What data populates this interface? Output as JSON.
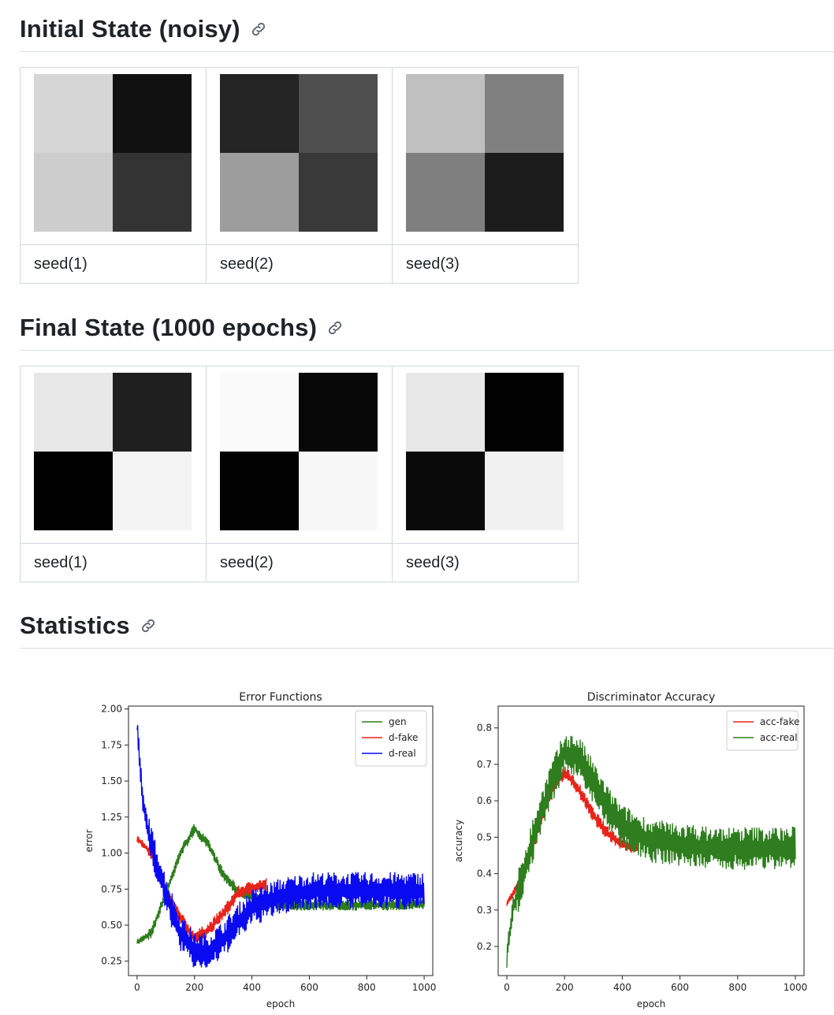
{
  "sections": [
    {
      "title": "Initial State (noisy)",
      "icon": "link-icon"
    },
    {
      "title": "Final State (1000 epochs)",
      "icon": "link-icon"
    },
    {
      "title": "Statistics",
      "icon": "link-icon"
    }
  ],
  "initial": {
    "captions": [
      "seed(1)",
      "seed(2)",
      "seed(3)"
    ],
    "grids": [
      [
        "#d6d6d6",
        "#111111",
        "#cdcdcd",
        "#333333"
      ],
      [
        "#242424",
        "#4e4e4e",
        "#9d9d9d",
        "#393939"
      ],
      [
        "#c0c0c0",
        "#808080",
        "#7f7f7f",
        "#1c1c1c"
      ]
    ]
  },
  "final": {
    "captions": [
      "seed(1)",
      "seed(2)",
      "seed(3)"
    ],
    "grids": [
      [
        "#e7e7e7",
        "#1f1f1f",
        "#000000",
        "#f4f4f4"
      ],
      [
        "#fafafa",
        "#080808",
        "#020202",
        "#f7f7f7"
      ],
      [
        "#e7e7e7",
        "#020202",
        "#0a0a0a",
        "#f1f1f1"
      ]
    ]
  },
  "chart_data": [
    {
      "type": "line",
      "title": "Error Functions",
      "xlabel": "epoch",
      "ylabel": "error",
      "xlim": [
        -30,
        1030
      ],
      "ylim": [
        0.15,
        2.02
      ],
      "xticks": [
        0,
        200,
        400,
        600,
        800,
        1000
      ],
      "yticks": [
        0.25,
        0.5,
        0.75,
        1.0,
        1.25,
        1.5,
        1.75,
        2.0
      ],
      "ytick_labels": [
        "0.25",
        "0.50",
        "0.75",
        "1.00",
        "1.25",
        "1.50",
        "1.75",
        "2.00"
      ],
      "legend": "top-right",
      "series": [
        {
          "name": "gen",
          "color": "#2e7d1e",
          "x": [
            0,
            50,
            100,
            150,
            200,
            250,
            300,
            350,
            400,
            500,
            600,
            700,
            800,
            900,
            1000
          ],
          "y": [
            0.38,
            0.45,
            0.72,
            1.0,
            1.17,
            1.05,
            0.85,
            0.74,
            0.69,
            0.64,
            0.64,
            0.64,
            0.64,
            0.64,
            0.65
          ],
          "noise": 0.04
        },
        {
          "name": "d-fake",
          "color": "#e8241a",
          "x": [
            0,
            50,
            100,
            150,
            200,
            250,
            300,
            350,
            400,
            450
          ],
          "y": [
            1.1,
            1.0,
            0.73,
            0.55,
            0.41,
            0.47,
            0.58,
            0.72,
            0.76,
            0.78
          ],
          "noise": 0.05
        },
        {
          "name": "d-real",
          "color": "#0a0af0",
          "x": [
            0,
            20,
            50,
            100,
            150,
            200,
            250,
            300,
            350,
            400,
            500,
            600,
            700,
            800,
            900,
            1000
          ],
          "y": [
            1.9,
            1.35,
            1.05,
            0.72,
            0.45,
            0.32,
            0.32,
            0.4,
            0.52,
            0.62,
            0.7,
            0.74,
            0.74,
            0.74,
            0.74,
            0.74
          ],
          "noise": 0.13
        }
      ]
    },
    {
      "type": "line",
      "title": "Discriminator Accuracy",
      "xlabel": "epoch",
      "ylabel": "accuracy",
      "xlim": [
        -30,
        1030
      ],
      "ylim": [
        0.12,
        0.86
      ],
      "xticks": [
        0,
        200,
        400,
        600,
        800,
        1000
      ],
      "yticks": [
        0.2,
        0.3,
        0.4,
        0.5,
        0.6,
        0.7,
        0.8
      ],
      "ytick_labels": [
        "0.2",
        "0.3",
        "0.4",
        "0.5",
        "0.6",
        "0.7",
        "0.8"
      ],
      "legend": "top-right",
      "series": [
        {
          "name": "acc-fake",
          "color": "#e8241a",
          "x": [
            0,
            50,
            100,
            150,
            200,
            250,
            300,
            350,
            400,
            450
          ],
          "y": [
            0.32,
            0.38,
            0.5,
            0.62,
            0.68,
            0.63,
            0.56,
            0.51,
            0.48,
            0.47
          ],
          "noise": 0.02
        },
        {
          "name": "acc-real",
          "color": "#2e7d1e",
          "x": [
            0,
            20,
            50,
            100,
            150,
            200,
            250,
            300,
            350,
            400,
            500,
            600,
            700,
            800,
            900,
            1000
          ],
          "y": [
            0.17,
            0.3,
            0.38,
            0.52,
            0.64,
            0.73,
            0.72,
            0.65,
            0.58,
            0.53,
            0.49,
            0.48,
            0.47,
            0.47,
            0.47,
            0.47
          ],
          "noise": 0.06
        }
      ]
    }
  ]
}
